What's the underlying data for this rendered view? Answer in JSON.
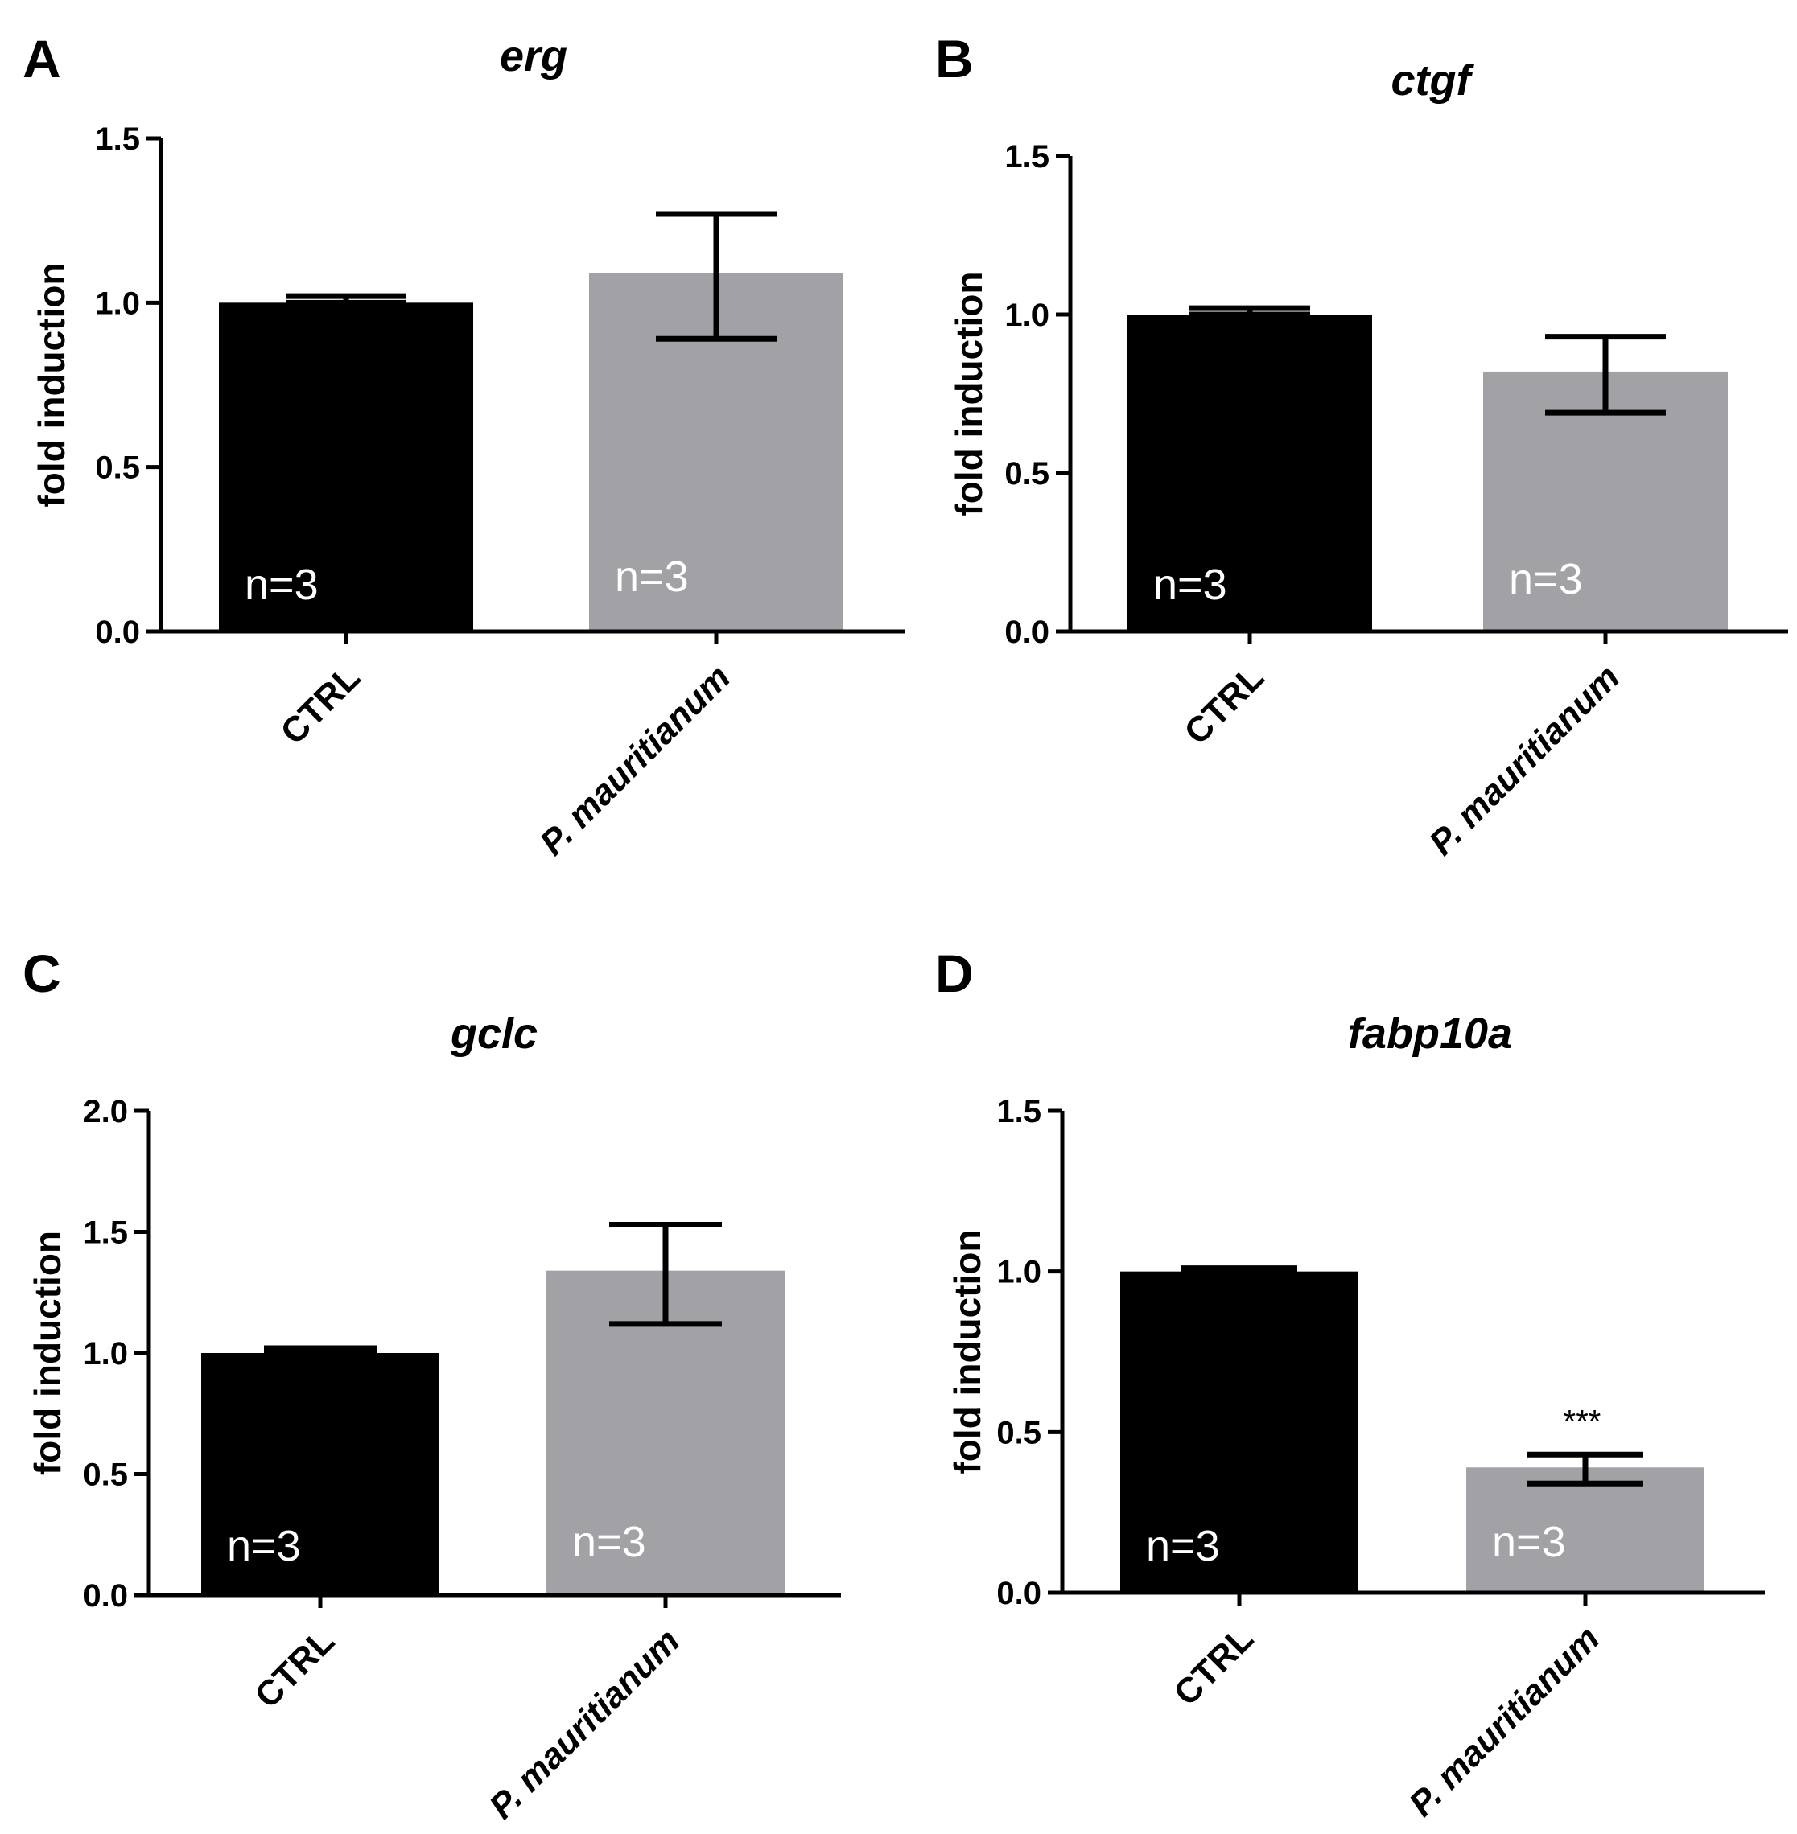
{
  "figure": {
    "background": "#ffffff"
  },
  "chart_data": [
    {
      "type": "bar",
      "panel": "A",
      "title": "erg",
      "xlabel": "",
      "ylabel": "fold induction",
      "ylim": [
        0,
        1.5
      ],
      "yticks": [
        "0.0",
        "0.5",
        "1.0",
        "1.5"
      ],
      "categories": [
        "CTRL",
        "P. mauritianum"
      ],
      "values": [
        1.0,
        1.09
      ],
      "error_low": [
        1.0,
        0.89
      ],
      "error_high": [
        1.02,
        1.27
      ],
      "bar_colors": [
        "#000000",
        "#a2a1a6"
      ],
      "n_labels": [
        "n=3",
        "n=3"
      ],
      "significance": [
        "",
        ""
      ]
    },
    {
      "type": "bar",
      "panel": "B",
      "title": "ctgf",
      "xlabel": "",
      "ylabel": "fold induction",
      "ylim": [
        0,
        1.5
      ],
      "yticks": [
        "0.0",
        "0.5",
        "1.0",
        "1.5"
      ],
      "categories": [
        "CTRL",
        "P. mauritianum"
      ],
      "values": [
        1.0,
        0.82
      ],
      "error_low": [
        1.0,
        0.69
      ],
      "error_high": [
        1.02,
        0.93
      ],
      "bar_colors": [
        "#000000",
        "#a2a1a6"
      ],
      "n_labels": [
        "n=3",
        "n=3"
      ],
      "significance": [
        "",
        ""
      ]
    },
    {
      "type": "bar",
      "panel": "C",
      "title": "gclc",
      "xlabel": "",
      "ylabel": "fold induction",
      "ylim": [
        0,
        2.0
      ],
      "yticks": [
        "0.0",
        "0.5",
        "1.0",
        "1.5",
        "2.0"
      ],
      "categories": [
        "CTRL",
        "P. mauritianum"
      ],
      "values": [
        1.0,
        1.34
      ],
      "error_low": [
        1.0,
        1.12
      ],
      "error_high": [
        1.02,
        1.53
      ],
      "bar_colors": [
        "#000000",
        "#a2a1a6"
      ],
      "n_labels": [
        "n=3",
        "n=3"
      ],
      "significance": [
        "",
        ""
      ]
    },
    {
      "type": "bar",
      "panel": "D",
      "title": "fabp10a",
      "xlabel": "",
      "ylabel": "fold induction",
      "ylim": [
        0,
        1.5
      ],
      "yticks": [
        "0.0",
        "0.5",
        "1.0",
        "1.5"
      ],
      "categories": [
        "CTRL",
        "P. mauritianum"
      ],
      "values": [
        1.0,
        0.39
      ],
      "error_low": [
        1.0,
        0.34
      ],
      "error_high": [
        1.01,
        0.43
      ],
      "bar_colors": [
        "#000000",
        "#a2a1a6"
      ],
      "n_labels": [
        "n=3",
        "n=3"
      ],
      "significance": [
        "",
        "***"
      ]
    }
  ]
}
